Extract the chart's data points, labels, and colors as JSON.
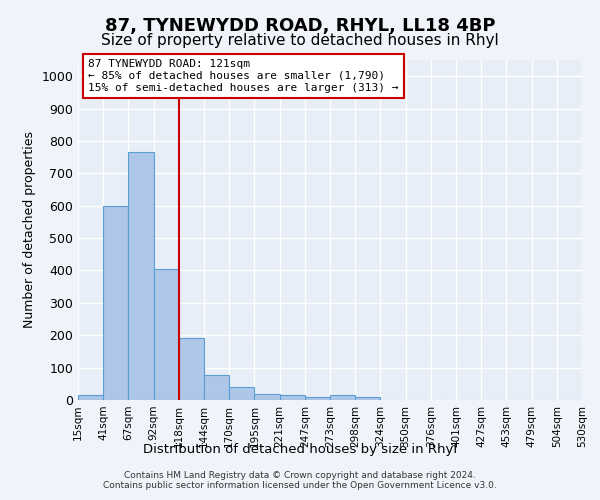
{
  "title": "87, TYNEWYDD ROAD, RHYL, LL18 4BP",
  "subtitle": "Size of property relative to detached houses in Rhyl",
  "xlabel_bottom": "Distribution of detached houses by size in Rhyl",
  "ylabel": "Number of detached properties",
  "footer": "Contains HM Land Registry data © Crown copyright and database right 2024.\nContains public sector information licensed under the Open Government Licence v3.0.",
  "tick_labels": [
    "15sqm",
    "41sqm",
    "67sqm",
    "92sqm",
    "118sqm",
    "144sqm",
    "170sqm",
    "195sqm",
    "221sqm",
    "247sqm",
    "273sqm",
    "298sqm",
    "324sqm",
    "350sqm",
    "376sqm",
    "401sqm",
    "427sqm",
    "453sqm",
    "479sqm",
    "504sqm",
    "530sqm"
  ],
  "bar_values": [
    15,
    600,
    765,
    405,
    190,
    78,
    40,
    18,
    16,
    10,
    14,
    8,
    0,
    0,
    0,
    0,
    0,
    0,
    0,
    0
  ],
  "bar_color": "#aec6e8",
  "bar_edge_color": "#5a9fd4",
  "property_line_x": 3.5,
  "property_line_color": "#cc0000",
  "annotation_text": "87 TYNEWYDD ROAD: 121sqm\n← 85% of detached houses are smaller (1,790)\n15% of semi-detached houses are larger (313) →",
  "annotation_box_color": "#ffffff",
  "annotation_box_edge": "#cc0000",
  "ylim": [
    0,
    1050
  ],
  "yticks": [
    0,
    100,
    200,
    300,
    400,
    500,
    600,
    700,
    800,
    900,
    1000
  ],
  "plot_bg_color": "#e8eef7",
  "fig_bg_color": "#f0f4fa",
  "grid_color": "#ffffff",
  "title_fontsize": 13,
  "subtitle_fontsize": 11
}
